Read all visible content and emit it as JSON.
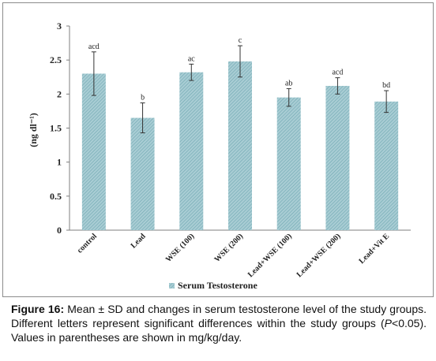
{
  "chart_data": {
    "type": "bar",
    "categories": [
      "control",
      "Lead",
      "WSE (100)",
      "WSE (200)",
      "Lead+WSE (100)",
      "Lead+WSE (200)",
      "Lead+Vit E"
    ],
    "series": [
      {
        "name": "Serum Testosterone",
        "values": [
          2.3,
          1.65,
          2.32,
          2.48,
          1.95,
          2.12,
          1.89
        ],
        "errors": [
          0.32,
          0.22,
          0.12,
          0.23,
          0.13,
          0.12,
          0.16
        ],
        "labels": [
          "acd",
          "b",
          "ac",
          "c",
          "ab",
          "acd",
          "bd"
        ]
      }
    ],
    "ylabel": "(ng dl⁻¹)",
    "ylim": [
      0,
      3
    ],
    "yticks": [
      "0",
      "0.5",
      "1",
      "1.5",
      "2",
      "2.5",
      "3"
    ],
    "grid": false,
    "legend": "bottom-center",
    "colors": {
      "bar_fill": "#a9cdd4",
      "bar_hatch": "#6fa7b1",
      "error_bar": "#333333"
    }
  },
  "caption": {
    "label": "Figure 16:",
    "text_before_p": " Mean ± SD and changes in serum testosterone level of the study groups. Different letters represent significant differences within the study groups (",
    "p_symbol": "P",
    "text_after_p": "<0.05). Values in parentheses are shown in mg/kg/day."
  }
}
